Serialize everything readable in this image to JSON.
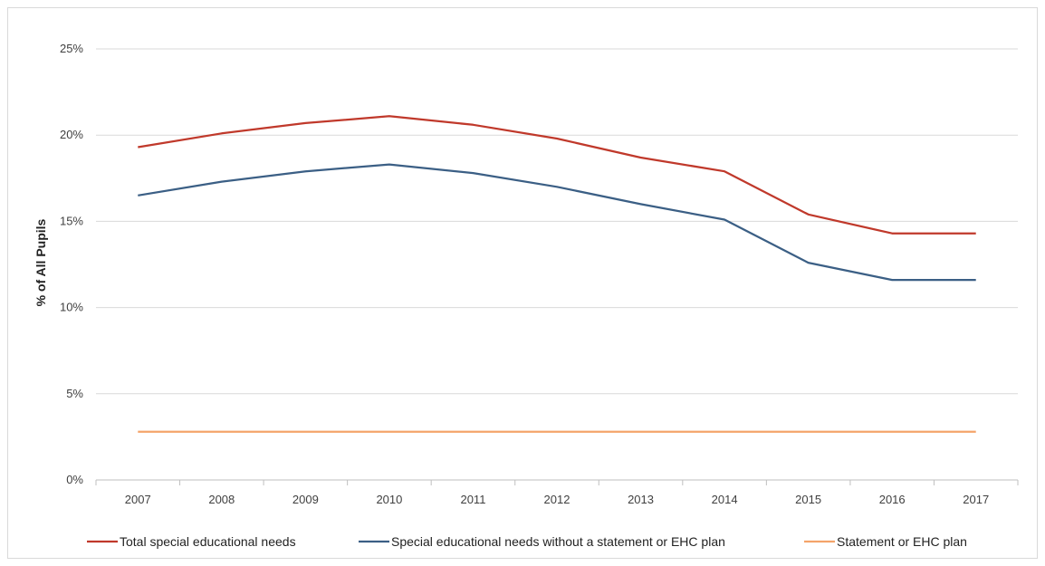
{
  "chart_data": {
    "type": "line",
    "title": "",
    "xlabel": "",
    "ylabel": "% of All Pupils",
    "x": [
      "2007",
      "2008",
      "2009",
      "2010",
      "2011",
      "2012",
      "2013",
      "2014",
      "2015",
      "2016",
      "2017"
    ],
    "ylim": [
      0,
      25
    ],
    "yticks": [
      0,
      5,
      10,
      15,
      20,
      25
    ],
    "ytick_labels": [
      "0%",
      "5%",
      "10%",
      "15%",
      "20%",
      "25%"
    ],
    "grid": true,
    "legend_position": "bottom",
    "series": [
      {
        "name": "Total special educational needs",
        "color": "#c0392b",
        "values": [
          19.3,
          20.1,
          20.7,
          21.1,
          20.6,
          19.8,
          18.7,
          17.9,
          15.4,
          14.3,
          14.3
        ]
      },
      {
        "name": "Special educational needs without a statement or EHC plan",
        "color": "#3b5f85",
        "values": [
          16.5,
          17.3,
          17.9,
          18.3,
          17.8,
          17.0,
          16.0,
          15.1,
          12.6,
          11.6,
          11.6
        ]
      },
      {
        "name": "Statement or EHC plan",
        "color": "#f4a46a",
        "values": [
          2.8,
          2.8,
          2.8,
          2.8,
          2.8,
          2.8,
          2.8,
          2.8,
          2.8,
          2.8,
          2.8
        ]
      }
    ]
  }
}
